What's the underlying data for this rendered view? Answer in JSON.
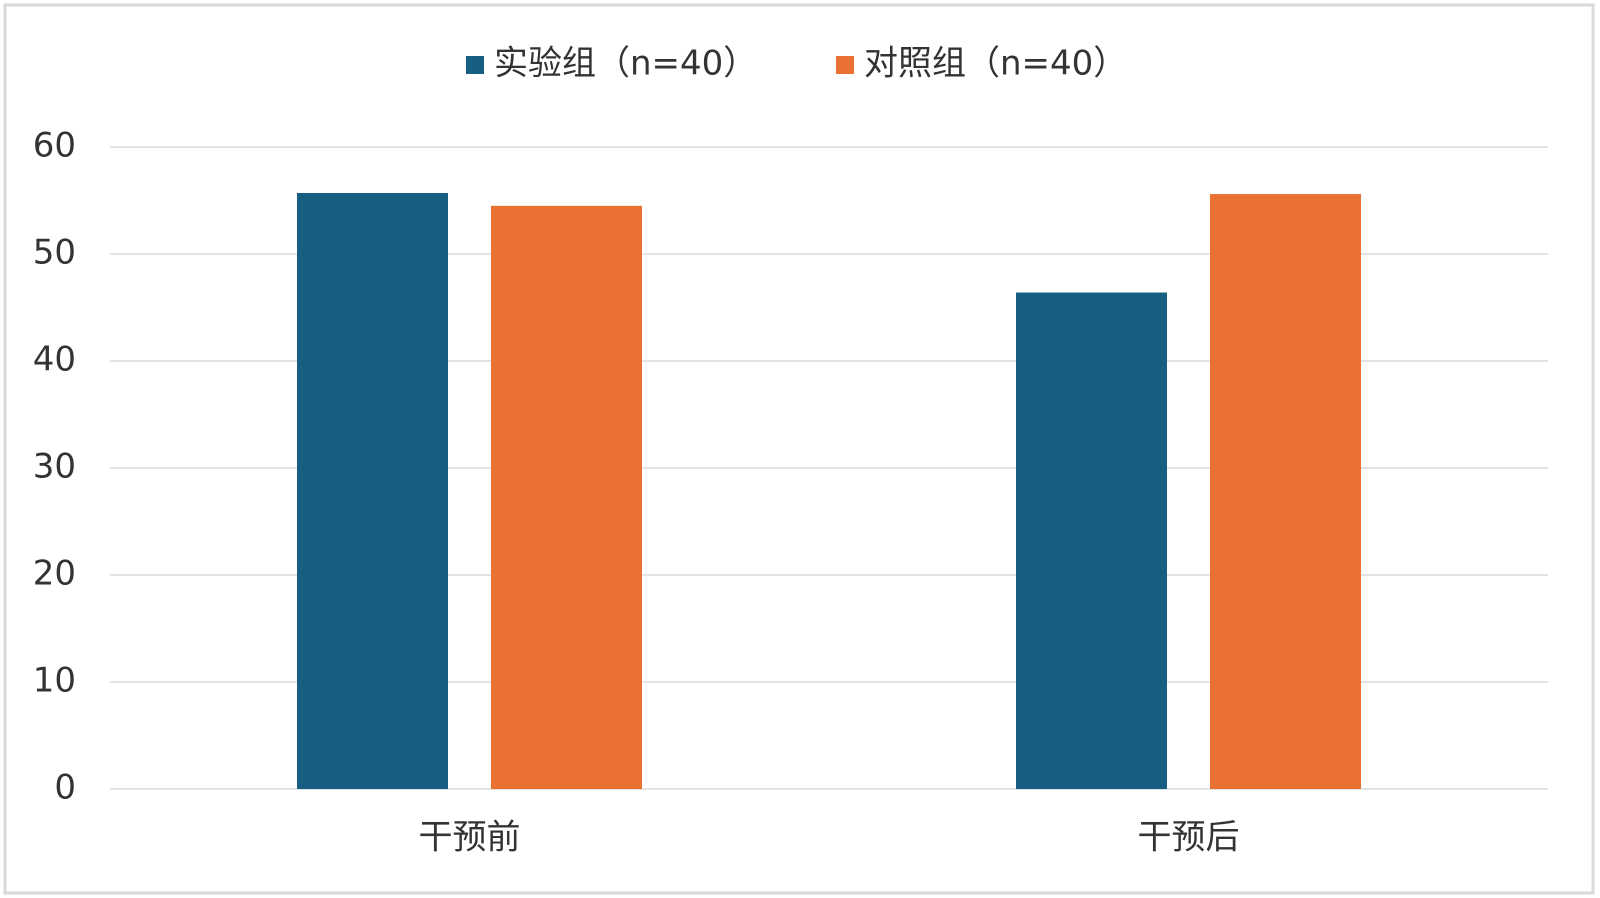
{
  "chart_data": {
    "type": "bar",
    "categories": [
      "干预前",
      "干预后"
    ],
    "series": [
      {
        "name": "实验组（n=40）",
        "color": "#175f82",
        "values": [
          55.7,
          46.4
        ]
      },
      {
        "name": "对照组（n=40）",
        "color": "#e97132",
        "values": [
          54.5,
          55.6
        ]
      }
    ],
    "ylim": [
      0,
      60
    ],
    "yticks": [
      0,
      10,
      20,
      30,
      40,
      50,
      60
    ],
    "grid": true,
    "legend": "top"
  }
}
